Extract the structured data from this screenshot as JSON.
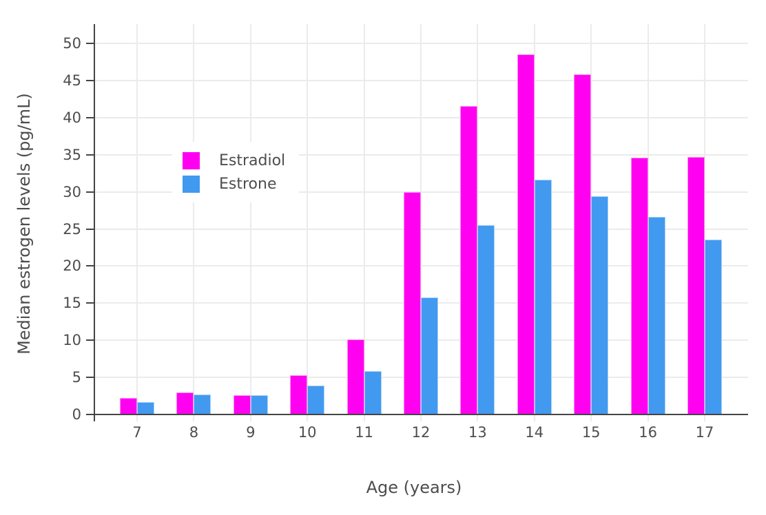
{
  "chart_data": {
    "type": "bar",
    "title": "",
    "xlabel": "Age (years)",
    "ylabel": "Median estrogen levels (pg/mL)",
    "categories": [
      "7",
      "8",
      "9",
      "10",
      "11",
      "12",
      "13",
      "14",
      "15",
      "16",
      "17"
    ],
    "series": [
      {
        "name": "Estradiol",
        "color": "#ff00f0",
        "values": [
          2.2,
          3.0,
          2.6,
          5.3,
          10.1,
          30.0,
          41.6,
          48.5,
          45.8,
          34.6,
          34.7
        ]
      },
      {
        "name": "Estrone",
        "color": "#4299f0",
        "values": [
          1.7,
          2.7,
          2.6,
          3.9,
          5.8,
          15.8,
          25.5,
          31.6,
          29.4,
          26.6,
          23.6
        ]
      }
    ],
    "yticks": [
      0,
      5,
      10,
      15,
      20,
      25,
      30,
      35,
      40,
      45,
      50
    ],
    "ylim": [
      0,
      52.6
    ],
    "grid": true,
    "legend_position": "inside-top-left",
    "colors": {
      "background": "#ffffff",
      "grid": "#ebebeb",
      "axis": "#444444",
      "tick_text": "#4d4d4d"
    }
  }
}
